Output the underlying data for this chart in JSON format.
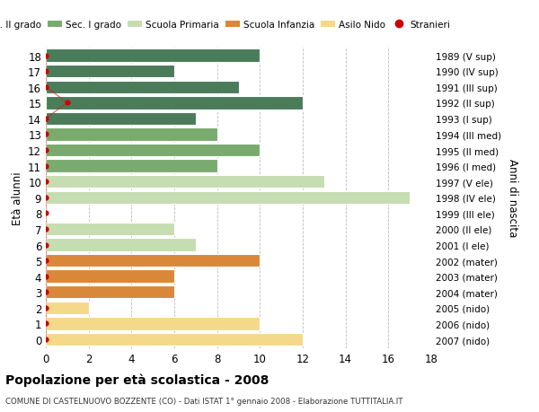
{
  "ages": [
    18,
    17,
    16,
    15,
    14,
    13,
    12,
    11,
    10,
    9,
    8,
    7,
    6,
    5,
    4,
    3,
    2,
    1,
    0
  ],
  "right_labels": [
    "1989 (V sup)",
    "1990 (IV sup)",
    "1991 (III sup)",
    "1992 (II sup)",
    "1993 (I sup)",
    "1994 (III med)",
    "1995 (II med)",
    "1996 (I med)",
    "1997 (V ele)",
    "1998 (IV ele)",
    "1999 (III ele)",
    "2000 (II ele)",
    "2001 (I ele)",
    "2002 (mater)",
    "2003 (mater)",
    "2004 (mater)",
    "2005 (nido)",
    "2006 (nido)",
    "2007 (nido)"
  ],
  "values": [
    10,
    6,
    9,
    12,
    7,
    8,
    10,
    8,
    13,
    17,
    0,
    6,
    7,
    10,
    6,
    6,
    2,
    10,
    12
  ],
  "colors": [
    "#4a7c59",
    "#4a7c59",
    "#4a7c59",
    "#4a7c59",
    "#4a7c59",
    "#7aab6e",
    "#7aab6e",
    "#7aab6e",
    "#c5ddb0",
    "#c5ddb0",
    "#c5ddb0",
    "#c5ddb0",
    "#c5ddb0",
    "#d9883a",
    "#d9883a",
    "#d9883a",
    "#f5d98a",
    "#f5d98a",
    "#f5d98a"
  ],
  "stranieri_marker_color": "#cc0000",
  "stranieri_line_color": "#cc2222",
  "stranieri_x": [
    0,
    0,
    0,
    1,
    0,
    0,
    0,
    0,
    0,
    0,
    0,
    0,
    0,
    0,
    0,
    0,
    0,
    0,
    0
  ],
  "title": "Popolazione per età scolastica - 2008",
  "subtitle": "COMUNE DI CASTELNUOVO BOZZENTE (CO) - Dati ISTAT 1° gennaio 2008 - Elaborazione TUTTITALIA.IT",
  "ylabel": "Età alunni",
  "xlabel_right": "Anni di nascita",
  "xlim": [
    0,
    18
  ],
  "ylim": [
    -0.55,
    18.55
  ],
  "xticks": [
    0,
    2,
    4,
    6,
    8,
    10,
    12,
    14,
    16,
    18
  ],
  "legend_entries": [
    {
      "label": "Sec. II grado",
      "color": "#4a7c59"
    },
    {
      "label": "Sec. I grado",
      "color": "#7aab6e"
    },
    {
      "label": "Scuola Primaria",
      "color": "#c5ddb0"
    },
    {
      "label": "Scuola Infanzia",
      "color": "#d9883a"
    },
    {
      "label": "Asilo Nido",
      "color": "#f5d98a"
    },
    {
      "label": "Stranieri",
      "color": "#cc0000"
    }
  ],
  "bg_color": "#ffffff",
  "grid_color": "#bbbbbb",
  "bar_height": 0.82
}
